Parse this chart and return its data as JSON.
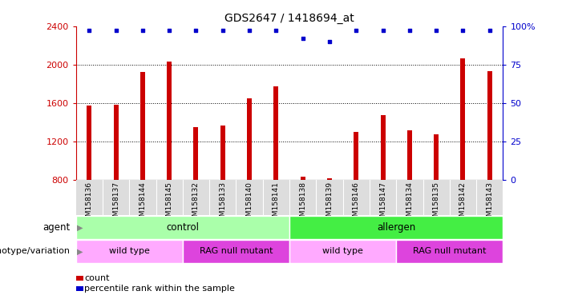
{
  "title": "GDS2647 / 1418694_at",
  "samples": [
    "GSM158136",
    "GSM158137",
    "GSM158144",
    "GSM158145",
    "GSM158132",
    "GSM158133",
    "GSM158140",
    "GSM158141",
    "GSM158138",
    "GSM158139",
    "GSM158146",
    "GSM158147",
    "GSM158134",
    "GSM158135",
    "GSM158142",
    "GSM158143"
  ],
  "counts": [
    1570,
    1580,
    1920,
    2030,
    1350,
    1360,
    1650,
    1770,
    830,
    810,
    1300,
    1470,
    1310,
    1270,
    2060,
    1930
  ],
  "percentile_ranks": [
    97,
    97,
    97,
    97,
    97,
    97,
    97,
    97,
    92,
    90,
    97,
    97,
    97,
    97,
    97,
    97
  ],
  "ymin": 800,
  "ymax": 2400,
  "yticks": [
    800,
    1200,
    1600,
    2000,
    2400
  ],
  "right_yticks": [
    0,
    25,
    50,
    75,
    100
  ],
  "bar_color": "#cc0000",
  "dot_color": "#0000cc",
  "agent_control_color": "#aaffaa",
  "agent_allergen_color": "#44ee44",
  "geno_wildtype_color": "#ffaaff",
  "geno_mutant_color": "#dd44dd",
  "agent_label": "agent",
  "genotype_label": "genotype/variation",
  "agent_groups": [
    {
      "label": "control",
      "start": 0,
      "end": 8
    },
    {
      "label": "allergen",
      "start": 8,
      "end": 16
    }
  ],
  "genotype_groups": [
    {
      "label": "wild type",
      "start": 0,
      "end": 4,
      "color": "#ffaaff"
    },
    {
      "label": "RAG null mutant",
      "start": 4,
      "end": 8,
      "color": "#dd44dd"
    },
    {
      "label": "wild type",
      "start": 8,
      "end": 12,
      "color": "#ffaaff"
    },
    {
      "label": "RAG null mutant",
      "start": 12,
      "end": 16,
      "color": "#dd44dd"
    }
  ],
  "legend_count_label": "count",
  "legend_percentile_label": "percentile rank within the sample",
  "xtick_bg_color": "#dddddd"
}
